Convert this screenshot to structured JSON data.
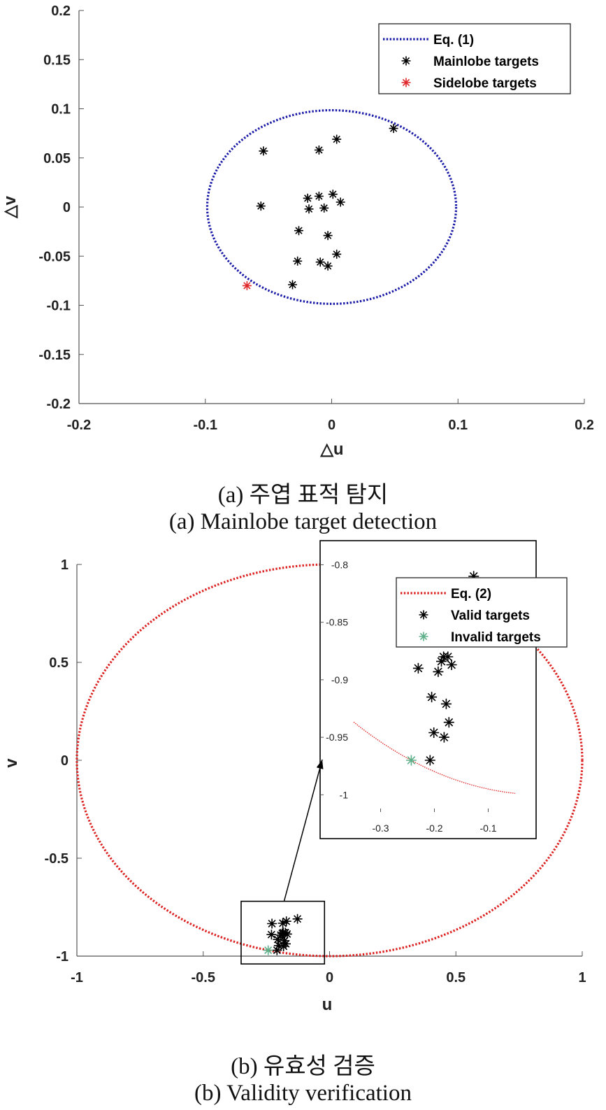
{
  "chart_data": [
    {
      "type": "scatter",
      "title": "",
      "xlabel": "△u",
      "ylabel": "△v",
      "xlim": [
        -0.2,
        0.2
      ],
      "ylim": [
        -0.2,
        0.2
      ],
      "xticks": [
        "-0.2",
        "-0.1",
        "0",
        "0.1",
        "0.2"
      ],
      "yticks": [
        "0.2",
        "0.15",
        "0.1",
        "0.05",
        "0",
        "-0.05",
        "-0.1",
        "-0.15",
        "-0.2"
      ],
      "grid": false,
      "legend_position": "top-right",
      "curve": {
        "name": "Eq. (1)",
        "shape": "circle",
        "radius": 0.0985,
        "color": "#1a1aa8",
        "style": "dotted"
      },
      "series": [
        {
          "name": "Mainlobe targets",
          "marker": "*",
          "color": "#000000",
          "x": [
            0.049,
            0.004,
            -0.01,
            -0.054,
            0.001,
            -0.01,
            -0.019,
            -0.056,
            0.007,
            -0.018,
            -0.006,
            -0.026,
            -0.003,
            0.004,
            -0.027,
            -0.009,
            -0.003,
            -0.031
          ],
          "y": [
            0.08,
            0.069,
            0.058,
            0.057,
            0.013,
            0.011,
            0.009,
            0.001,
            0.005,
            -0.002,
            -0.001,
            -0.024,
            -0.029,
            -0.048,
            -0.055,
            -0.056,
            -0.06,
            -0.079
          ]
        },
        {
          "name": "Sidelobe targets",
          "marker": "*",
          "color": "#e0282a",
          "x": [
            -0.067
          ],
          "y": [
            -0.08
          ]
        }
      ]
    },
    {
      "type": "scatter",
      "title": "",
      "xlabel": "u",
      "ylabel": "v",
      "xlim": [
        -1,
        1
      ],
      "ylim": [
        -1,
        1
      ],
      "xticks": [
        "-1",
        "-0.5",
        "0",
        "0.5",
        "1"
      ],
      "yticks": [
        "1",
        "0.5",
        "0",
        "-0.5",
        "-1"
      ],
      "grid": false,
      "legend_position": "top-right",
      "curve": {
        "name": "Eq. (2)",
        "shape": "circle",
        "radius": 1.0,
        "color": "#dd2222",
        "style": "dotted"
      },
      "zoom_box": {
        "xlim": [
          -0.35,
          -0.02
        ],
        "ylim": [
          -1.04,
          -0.72
        ]
      },
      "series": [
        {
          "name": "Valid targets",
          "marker": "*",
          "color": "#000000",
          "x": [
            -0.127,
            -0.171,
            -0.185,
            -0.228,
            -0.175,
            -0.187,
            -0.23,
            -0.168,
            -0.193,
            -0.183,
            -0.205,
            -0.173,
            -0.178,
            -0.201,
            -0.182,
            -0.208
          ],
          "y": [
            -0.81,
            -0.822,
            -0.832,
            -0.834,
            -0.88,
            -0.884,
            -0.89,
            -0.887,
            -0.893,
            -0.88,
            -0.915,
            -0.937,
            -0.921,
            -0.946,
            -0.95,
            -0.97
          ]
        },
        {
          "name": "Invalid targets",
          "marker": "*",
          "color": "#5fb08a",
          "x": [
            -0.243
          ],
          "y": [
            -0.97
          ]
        }
      ],
      "inset": {
        "xlim": [
          -0.35,
          -0.05
        ],
        "ylim": [
          -1.015,
          -0.79
        ],
        "xticks": [
          "-0.3",
          "-0.2",
          "-0.1"
        ],
        "yticks": [
          "-0.8",
          "-0.85",
          "-0.9",
          "-0.95",
          "-1"
        ]
      }
    }
  ],
  "captions": {
    "a_korean": "(a) 주엽 표적 탐지",
    "a_english": "(a) Mainlobe target detection",
    "b_korean": "(b) 유효성 검증",
    "b_english": "(b) Validity verification"
  }
}
